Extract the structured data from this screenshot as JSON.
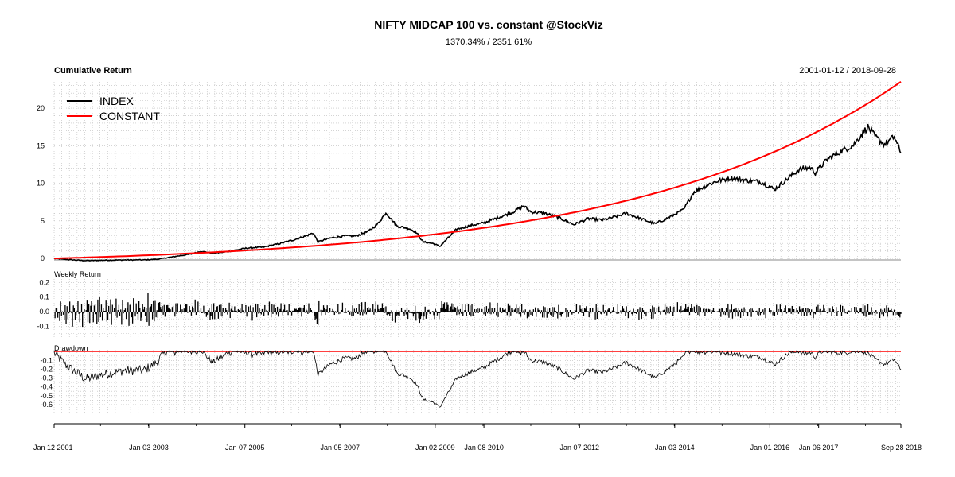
{
  "chart_data": {
    "type": "line",
    "title": "NIFTY MIDCAP 100 vs. constant @StockViz",
    "subtitle": "1370.34% / 2351.61%",
    "date_range": "2001-01-12 / 2018-09-28",
    "x_tick_labels": [
      "Jan 12 2001",
      "Jan 03 2003",
      "Jan 07 2005",
      "Jan 05 2007",
      "Jan 02 2009",
      "Jan 08 2010",
      "Jan 07 2012",
      "Jan 03 2014",
      "Jan 01 2016",
      "Jan 06 2017",
      "Sep 28 2018"
    ],
    "x_start": 2001.03,
    "x_end": 2018.74,
    "grid": true,
    "legend_placement": "top-left",
    "colors": {
      "index": "#000000",
      "constant": "#ff0000",
      "grid": "#bbbbbb"
    },
    "panels": [
      {
        "name": "cumulative",
        "label": "Cumulative Return",
        "ylim": [
          -0.2,
          23.5
        ],
        "yticks": [
          0,
          5,
          10,
          15,
          20
        ],
        "legend": [
          "INDEX",
          "CONSTANT"
        ],
        "series": [
          {
            "name": "INDEX",
            "color": "#000000",
            "points": [
              [
                2001.03,
                0
              ],
              [
                2001.3,
                -0.15
              ],
              [
                2001.7,
                -0.3
              ],
              [
                2002.0,
                -0.25
              ],
              [
                2002.5,
                -0.2
              ],
              [
                2002.9,
                -0.2
              ],
              [
                2003.2,
                -0.1
              ],
              [
                2003.5,
                0.2
              ],
              [
                2003.9,
                0.6
              ],
              [
                2004.1,
                0.95
              ],
              [
                2004.35,
                0.7
              ],
              [
                2004.6,
                0.85
              ],
              [
                2004.9,
                1.2
              ],
              [
                2005.1,
                1.4
              ],
              [
                2005.4,
                1.5
              ],
              [
                2005.7,
                1.9
              ],
              [
                2006.0,
                2.4
              ],
              [
                2006.3,
                3.0
              ],
              [
                2006.45,
                3.4
              ],
              [
                2006.55,
                2.2
              ],
              [
                2006.8,
                2.7
              ],
              [
                2007.1,
                3.0
              ],
              [
                2007.35,
                3.0
              ],
              [
                2007.6,
                3.6
              ],
              [
                2007.8,
                4.6
              ],
              [
                2007.97,
                6.1
              ],
              [
                2008.05,
                5.5
              ],
              [
                2008.2,
                4.3
              ],
              [
                2008.45,
                4.0
              ],
              [
                2008.6,
                3.5
              ],
              [
                2008.75,
                2.2
              ],
              [
                2008.95,
                2.0
              ],
              [
                2009.1,
                1.6
              ],
              [
                2009.25,
                2.6
              ],
              [
                2009.45,
                3.9
              ],
              [
                2009.75,
                4.4
              ],
              [
                2010.0,
                4.7
              ],
              [
                2010.3,
                5.4
              ],
              [
                2010.6,
                6.1
              ],
              [
                2010.85,
                7.0
              ],
              [
                2011.0,
                6.2
              ],
              [
                2011.3,
                6.0
              ],
              [
                2011.6,
                5.4
              ],
              [
                2011.9,
                4.5
              ],
              [
                2012.2,
                5.3
              ],
              [
                2012.5,
                5.1
              ],
              [
                2012.8,
                5.6
              ],
              [
                2013.0,
                6.0
              ],
              [
                2013.3,
                5.3
              ],
              [
                2013.6,
                4.6
              ],
              [
                2013.9,
                5.5
              ],
              [
                2014.2,
                6.5
              ],
              [
                2014.4,
                8.8
              ],
              [
                2014.7,
                9.8
              ],
              [
                2014.9,
                10.3
              ],
              [
                2015.2,
                10.7
              ],
              [
                2015.5,
                10.4
              ],
              [
                2015.8,
                10.2
              ],
              [
                2016.1,
                9.2
              ],
              [
                2016.35,
                10.5
              ],
              [
                2016.6,
                11.8
              ],
              [
                2016.85,
                12.1
              ],
              [
                2016.95,
                11.4
              ],
              [
                2017.2,
                13.2
              ],
              [
                2017.5,
                14.3
              ],
              [
                2017.75,
                15.1
              ],
              [
                2017.95,
                16.8
              ],
              [
                2018.05,
                17.5
              ],
              [
                2018.2,
                16.2
              ],
              [
                2018.4,
                15.2
              ],
              [
                2018.6,
                16.2
              ],
              [
                2018.74,
                14.0
              ]
            ]
          },
          {
            "name": "CONSTANT",
            "color": "#ff0000",
            "growth": "exponential",
            "start_value": 0,
            "end_value": 23.5161
          }
        ]
      },
      {
        "name": "weekly",
        "label": "Weekly Return",
        "ylim": [
          -0.18,
          0.24
        ],
        "yticks": [
          -0.1,
          0.0,
          0.1,
          0.2
        ],
        "tick_labels": [
          "-0.1",
          "0.0",
          "0.1",
          "0.2"
        ]
      },
      {
        "name": "drawdown",
        "label": "Drawdown",
        "ylim": [
          -0.7,
          0.02
        ],
        "yticks": [
          -0.6,
          -0.5,
          -0.4,
          -0.3,
          -0.2,
          -0.1
        ],
        "tick_labels": [
          "-0.6",
          "-0.5",
          "-0.4",
          "-0.3",
          "-0.2",
          "-0.1"
        ]
      }
    ]
  }
}
